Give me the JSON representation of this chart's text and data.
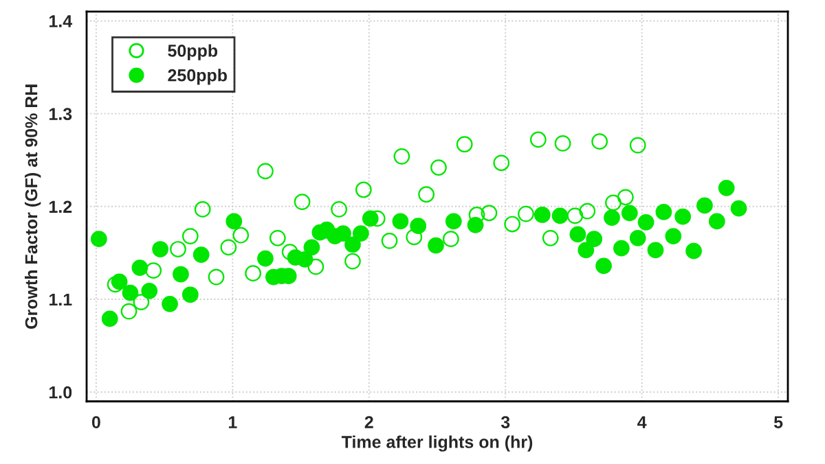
{
  "chart_data": {
    "type": "scatter",
    "xlabel": "Time after lights on (hr)",
    "ylabel": "Growth Factor (GF) at 90% RH",
    "xlim": [
      -0.07,
      5.07
    ],
    "ylim": [
      0.99,
      1.41
    ],
    "xticks": [
      0,
      1,
      2,
      3,
      4,
      5
    ],
    "yticks": [
      {
        "value": 1.0,
        "label": "1.0"
      },
      1.1,
      1.2,
      1.3,
      1.4
    ],
    "grid": true,
    "legend": "top left",
    "series": [
      {
        "name": "50ppb",
        "color": "#00e600",
        "marker": "circle-open",
        "x": [
          0.14,
          0.24,
          0.33,
          0.42,
          0.6,
          0.69,
          0.78,
          0.88,
          0.97,
          1.06,
          1.15,
          1.24,
          1.33,
          1.42,
          1.51,
          1.61,
          1.69,
          1.78,
          1.88,
          1.96,
          2.06,
          2.15,
          2.24,
          2.33,
          2.42,
          2.51,
          2.6,
          2.7,
          2.79,
          2.88,
          2.97,
          3.05,
          3.15,
          3.24,
          3.33,
          3.42,
          3.51,
          3.6,
          3.69,
          3.79,
          3.88,
          3.97
        ],
        "values": [
          1.116,
          1.087,
          1.097,
          1.131,
          1.154,
          1.168,
          1.197,
          1.124,
          1.156,
          1.169,
          1.128,
          1.238,
          1.166,
          1.151,
          1.205,
          1.135,
          1.175,
          1.197,
          1.141,
          1.218,
          1.187,
          1.163,
          1.254,
          1.167,
          1.213,
          1.242,
          1.165,
          1.267,
          1.191,
          1.193,
          1.247,
          1.181,
          1.192,
          1.272,
          1.166,
          1.268,
          1.19,
          1.195,
          1.27,
          1.204,
          1.21,
          1.266
        ]
      },
      {
        "name": "250ppb",
        "color": "#00e600",
        "marker": "circle",
        "x": [
          0.02,
          0.1,
          0.17,
          0.25,
          0.32,
          0.39,
          0.47,
          0.54,
          0.62,
          0.69,
          0.77,
          1.01,
          1.24,
          1.3,
          1.36,
          1.41,
          1.46,
          1.53,
          1.58,
          1.64,
          1.69,
          1.75,
          1.81,
          1.88,
          1.94,
          2.01,
          2.23,
          2.36,
          2.49,
          2.62,
          2.78,
          3.27,
          3.4,
          3.53,
          3.59,
          3.65,
          3.72,
          3.78,
          3.85,
          3.91,
          3.97,
          4.03,
          4.1,
          4.16,
          4.23,
          4.3,
          4.38,
          4.46,
          4.55,
          4.62,
          4.71
        ],
        "values": [
          1.165,
          1.079,
          1.119,
          1.107,
          1.134,
          1.109,
          1.154,
          1.095,
          1.127,
          1.105,
          1.148,
          1.184,
          1.144,
          1.124,
          1.125,
          1.125,
          1.145,
          1.143,
          1.156,
          1.172,
          1.174,
          1.168,
          1.171,
          1.159,
          1.171,
          1.187,
          1.184,
          1.179,
          1.158,
          1.184,
          1.18,
          1.191,
          1.19,
          1.17,
          1.153,
          1.165,
          1.136,
          1.188,
          1.155,
          1.193,
          1.166,
          1.183,
          1.153,
          1.194,
          1.168,
          1.189,
          1.152,
          1.201,
          1.184,
          1.22,
          1.198
        ]
      }
    ]
  }
}
